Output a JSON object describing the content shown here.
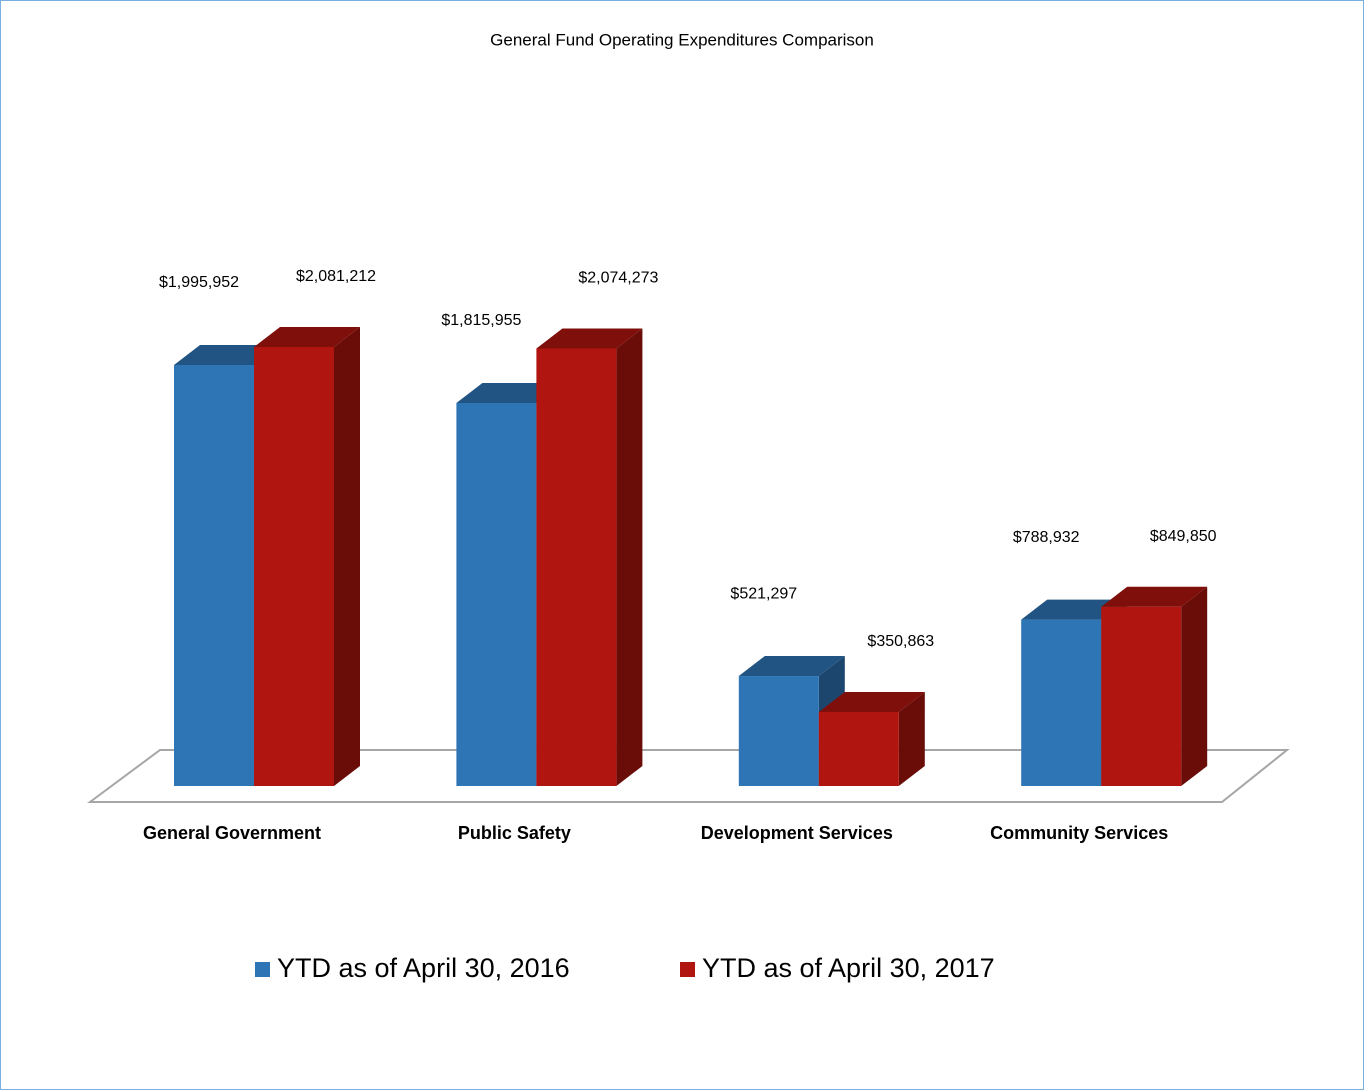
{
  "chart_data": {
    "type": "bar3d",
    "title": "General Fund Operating Expenditures Comparison",
    "categories": [
      "General Government",
      "Public Safety",
      "Development Services",
      "Community Services"
    ],
    "series": [
      {
        "name": "YTD as of April 30, 2016",
        "color": "#2e75b6",
        "values": [
          1995952,
          1815955,
          521297,
          788932
        ],
        "value_labels": [
          "$1,995,952",
          "$1,815,955",
          "$521,297",
          "$788,932"
        ]
      },
      {
        "name": "YTD as of April 30, 2017",
        "color": "#b0150f",
        "values": [
          2081212,
          2074273,
          350863,
          849850
        ],
        "value_labels": [
          "$2,081,212",
          "$2,074,273",
          "$350,863",
          "$849,850"
        ]
      }
    ],
    "legend": "bottom"
  }
}
